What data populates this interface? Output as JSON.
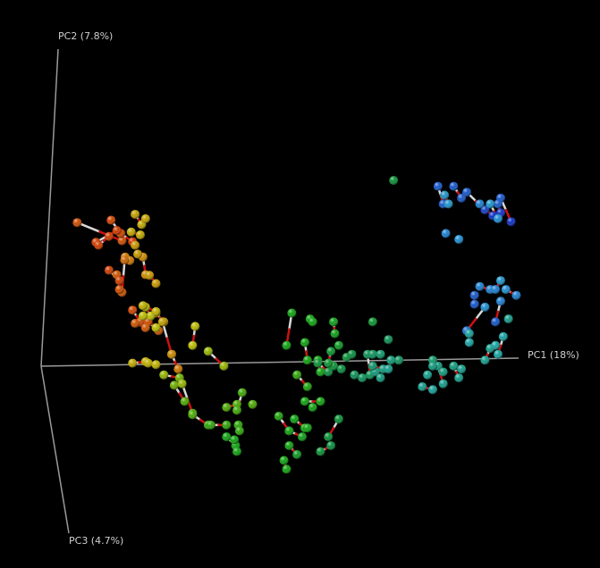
{
  "chart_data": {
    "type": "scatter",
    "projection": "3d-biplot",
    "axes": {
      "x": {
        "label": "PC1 (18%)"
      },
      "y": {
        "label": "PC2 (7.8%)"
      },
      "z": {
        "label": "PC3 (4.7%)"
      }
    },
    "grid": false,
    "legend": "none",
    "background": "#000000",
    "color_scale": [
      "#cc2200",
      "#c88a00",
      "#b8b800",
      "#5aa800",
      "#10a010",
      "#0a8a40",
      "#18a0a0",
      "#2090d0",
      "#1030c0"
    ],
    "note_encoding": "x in [-1,1] along PC1, y in [-1,1] along PC2, z in [0,1] along PC3; c = color gradient 0 (red) to 1 (blue)",
    "pairs": [
      {
        "a": [
          -0.862,
          0.457,
          0.25,
          0.05
        ],
        "b": [
          -0.69,
          0.395,
          0.25,
          0.05
        ]
      },
      {
        "a": [
          -0.732,
          0.465,
          0.25,
          0.04
        ],
        "b": [
          -0.695,
          0.42,
          0.25,
          0.04
        ]
      },
      {
        "a": [
          -0.695,
          0.42,
          0.25,
          0.04
        ],
        "b": [
          -0.65,
          0.392,
          0.25,
          0.02
        ]
      },
      {
        "a": [
          -0.79,
          0.39,
          0.25,
          0.03
        ],
        "b": [
          -0.71,
          0.43,
          0.25,
          0.03
        ]
      },
      {
        "a": [
          -0.78,
          0.38,
          0.25,
          0.03
        ],
        "b": [
          -0.74,
          0.41,
          0.25,
          0.03
        ]
      },
      {
        "a": [
          -0.64,
          0.485,
          0.25,
          0.18
        ],
        "b": [
          -0.615,
          0.45,
          0.25,
          0.2
        ]
      },
      {
        "a": [
          -0.655,
          0.425,
          0.25,
          0.2
        ],
        "b": [
          -0.62,
          0.415,
          0.25,
          0.2
        ]
      },
      {
        "a": [
          -0.678,
          0.34,
          0.25,
          0.1
        ],
        "b": [
          -0.66,
          0.328,
          0.25,
          0.1
        ]
      },
      {
        "a": [
          -0.61,
          0.34,
          0.25,
          0.12
        ],
        "b": [
          -0.6,
          0.28,
          0.25,
          0.12
        ]
      },
      {
        "a": [
          -0.585,
          0.278,
          0.25,
          0.15
        ],
        "b": [
          -0.56,
          0.25,
          0.25,
          0.15
        ]
      },
      {
        "a": [
          -0.68,
          0.33,
          0.25,
          0.08
        ],
        "b": [
          -0.69,
          0.22,
          0.25,
          0.06
        ]
      },
      {
        "a": [
          -0.71,
          0.28,
          0.25,
          0.06
        ],
        "b": [
          -0.7,
          0.23,
          0.25,
          0.05
        ]
      },
      {
        "a": [
          -0.74,
          0.295,
          0.25,
          0.03
        ],
        "b": [
          -0.7,
          0.26,
          0.25,
          0.03
        ]
      },
      {
        "a": [
          -0.65,
          0.16,
          0.25,
          0.04
        ],
        "b": [
          -0.62,
          0.12,
          0.25,
          0.04
        ]
      },
      {
        "a": [
          -0.59,
          0.12,
          0.25,
          0.05
        ],
        "b": [
          -0.55,
          0.09,
          0.25,
          0.06
        ]
      },
      {
        "a": [
          -0.64,
          0.115,
          0.25,
          0.06
        ],
        "b": [
          -0.6,
          0.1,
          0.25,
          0.06
        ]
      },
      {
        "a": [
          -0.56,
          0.15,
          0.25,
          0.15
        ],
        "b": [
          -0.53,
          0.12,
          0.25,
          0.15
        ]
      },
      {
        "a": [
          -0.535,
          0.12,
          0.25,
          0.18
        ],
        "b": [
          -0.5,
          0.01,
          0.25,
          0.2
        ]
      },
      {
        "a": [
          -0.5,
          0.01,
          0.25,
          0.12
        ],
        "b": [
          -0.475,
          -0.04,
          0.25,
          0.1
        ]
      },
      {
        "a": [
          -0.41,
          0.105,
          0.25,
          0.25
        ],
        "b": [
          -0.42,
          0.04,
          0.25,
          0.25
        ]
      },
      {
        "a": [
          -0.36,
          0.02,
          0.25,
          0.3
        ],
        "b": [
          -0.3,
          -0.03,
          0.25,
          0.3
        ]
      },
      {
        "a": [
          -0.6,
          0.17,
          0.25,
          0.25
        ],
        "b": [
          -0.58,
          0.14,
          0.25,
          0.25
        ]
      },
      {
        "a": [
          -0.61,
          0.14,
          0.25,
          0.25
        ],
        "b": [
          -0.56,
          0.1,
          0.25,
          0.25
        ]
      },
      {
        "a": [
          -0.61,
          0.175,
          0.25,
          0.22
        ],
        "b": [
          -0.56,
          0.155,
          0.25,
          0.22
        ]
      },
      {
        "a": [
          -0.65,
          -0.02,
          0.25,
          0.2
        ],
        "b": [
          -0.6,
          -0.015,
          0.25,
          0.2
        ]
      },
      {
        "a": [
          -0.59,
          -0.02,
          0.25,
          0.22
        ],
        "b": [
          -0.56,
          -0.025,
          0.25,
          0.22
        ]
      },
      {
        "a": [
          -0.53,
          -0.06,
          0.25,
          0.3
        ],
        "b": [
          -0.47,
          -0.07,
          0.25,
          0.35
        ]
      },
      {
        "a": [
          -0.49,
          -0.095,
          0.25,
          0.35
        ],
        "b": [
          -0.45,
          -0.15,
          0.25,
          0.4
        ]
      },
      {
        "a": [
          -0.46,
          -0.09,
          0.25,
          0.3
        ],
        "b": [
          -0.42,
          -0.19,
          0.25,
          0.4
        ]
      },
      {
        "a": [
          -0.42,
          -0.195,
          0.25,
          0.4
        ],
        "b": [
          -0.36,
          -0.23,
          0.25,
          0.45
        ]
      },
      {
        "a": [
          -0.35,
          -0.23,
          0.25,
          0.45
        ],
        "b": [
          -0.29,
          -0.23,
          0.25,
          0.45
        ]
      },
      {
        "a": [
          -0.29,
          -0.17,
          0.25,
          0.4
        ],
        "b": [
          -0.25,
          -0.16,
          0.25,
          0.4
        ]
      },
      {
        "a": [
          -0.23,
          -0.12,
          0.25,
          0.42
        ],
        "b": [
          -0.25,
          -0.18,
          0.25,
          0.42
        ]
      },
      {
        "a": [
          -0.29,
          -0.27,
          0.25,
          0.5
        ],
        "b": [
          -0.255,
          -0.3,
          0.25,
          0.5
        ]
      },
      {
        "a": [
          -0.26,
          -0.28,
          0.25,
          0.5
        ],
        "b": [
          -0.25,
          -0.32,
          0.25,
          0.5
        ]
      },
      {
        "a": [
          -0.245,
          -0.23,
          0.25,
          0.45
        ],
        "b": [
          -0.24,
          -0.25,
          0.25,
          0.45
        ]
      },
      {
        "a": [
          -0.04,
          0.15,
          0.25,
          0.5
        ],
        "b": [
          -0.06,
          0.04,
          0.25,
          0.5
        ]
      },
      {
        "a": [
          0.03,
          0.13,
          0.25,
          0.5
        ],
        "b": [
          0.04,
          0.12,
          0.25,
          0.5
        ]
      },
      {
        "a": [
          0.12,
          0.12,
          0.25,
          0.52
        ],
        "b": [
          0.125,
          0.08,
          0.25,
          0.52
        ]
      },
      {
        "a": [
          0.01,
          0.05,
          0.25,
          0.5
        ],
        "b": [
          0.02,
          -0.01,
          0.25,
          0.5
        ]
      },
      {
        "a": [
          0.06,
          -0.01,
          0.25,
          0.5
        ],
        "b": [
          0.07,
          -0.05,
          0.25,
          0.5
        ]
      },
      {
        "a": [
          -0.02,
          -0.06,
          0.25,
          0.45
        ],
        "b": [
          0.02,
          -0.1,
          0.25,
          0.48
        ]
      },
      {
        "a": [
          0.01,
          -0.15,
          0.25,
          0.5
        ],
        "b": [
          0.07,
          -0.15,
          0.25,
          0.5
        ]
      },
      {
        "a": [
          -0.09,
          -0.2,
          0.25,
          0.48
        ],
        "b": [
          -0.05,
          -0.25,
          0.25,
          0.5
        ]
      },
      {
        "a": [
          -0.05,
          -0.25,
          0.25,
          0.5
        ],
        "b": [
          0.0,
          -0.27,
          0.25,
          0.52
        ]
      },
      {
        "a": [
          -0.03,
          -0.21,
          0.25,
          0.5
        ],
        "b": [
          0.01,
          -0.24,
          0.25,
          0.5
        ]
      },
      {
        "a": [
          -0.05,
          -0.3,
          0.25,
          0.5
        ],
        "b": [
          -0.02,
          -0.33,
          0.25,
          0.55
        ]
      },
      {
        "a": [
          -0.07,
          -0.35,
          0.25,
          0.5
        ],
        "b": [
          -0.06,
          -0.38,
          0.25,
          0.5
        ]
      },
      {
        "a": [
          0.07,
          -0.32,
          0.25,
          0.6
        ],
        "b": [
          0.11,
          -0.3,
          0.25,
          0.62
        ]
      },
      {
        "a": [
          0.14,
          -0.21,
          0.25,
          0.6
        ],
        "b": [
          0.1,
          -0.27,
          0.25,
          0.6
        ]
      },
      {
        "a": [
          0.06,
          -0.02,
          0.25,
          0.6
        ],
        "b": [
          0.1,
          -0.05,
          0.25,
          0.62
        ]
      },
      {
        "a": [
          0.12,
          -0.03,
          0.25,
          0.6
        ],
        "b": [
          0.15,
          -0.04,
          0.25,
          0.62
        ]
      },
      {
        "a": [
          0.17,
          0.0,
          0.25,
          0.6
        ],
        "b": [
          0.19,
          0.01,
          0.25,
          0.62
        ]
      },
      {
        "a": [
          0.11,
          0.02,
          0.25,
          0.58
        ],
        "b": [
          0.1,
          -0.02,
          0.25,
          0.58
        ]
      },
      {
        "a": [
          0.25,
          0.01,
          0.25,
          0.65
        ],
        "b": [
          0.26,
          -0.06,
          0.25,
          0.65
        ]
      },
      {
        "a": [
          0.27,
          0.01,
          0.25,
          0.66
        ],
        "b": [
          0.3,
          0.01,
          0.25,
          0.68
        ]
      },
      {
        "a": [
          0.2,
          -0.06,
          0.25,
          0.65
        ],
        "b": [
          0.23,
          -0.07,
          0.25,
          0.66
        ]
      },
      {
        "a": [
          0.28,
          -0.05,
          0.25,
          0.7
        ],
        "b": [
          0.3,
          -0.07,
          0.25,
          0.7
        ]
      },
      {
        "a": [
          0.27,
          -0.03,
          0.25,
          0.68
        ],
        "b": [
          0.31,
          -0.04,
          0.25,
          0.7
        ]
      },
      {
        "a": [
          0.34,
          -0.01,
          0.25,
          0.7
        ],
        "b": [
          0.33,
          -0.04,
          0.25,
          0.72
        ]
      },
      {
        "a": [
          0.52,
          0.58,
          0.25,
          0.95
        ],
        "b": [
          0.54,
          0.52,
          0.25,
          0.95
        ]
      },
      {
        "a": [
          0.545,
          0.55,
          0.25,
          0.85
        ],
        "b": [
          0.56,
          0.52,
          0.25,
          0.85
        ]
      },
      {
        "a": [
          0.58,
          0.58,
          0.25,
          0.95
        ],
        "b": [
          0.61,
          0.54,
          0.25,
          0.95
        ]
      },
      {
        "a": [
          0.63,
          0.56,
          0.25,
          0.95
        ],
        "b": [
          0.7,
          0.5,
          0.25,
          0.98
        ]
      },
      {
        "a": [
          0.68,
          0.52,
          0.25,
          0.9
        ],
        "b": [
          0.73,
          0.48,
          0.25,
          1.0
        ]
      },
      {
        "a": [
          0.76,
          0.54,
          0.25,
          0.95
        ],
        "b": [
          0.8,
          0.46,
          0.25,
          1.0
        ]
      },
      {
        "a": [
          0.75,
          0.52,
          0.25,
          0.95
        ],
        "b": [
          0.76,
          0.49,
          0.25,
          1.0
        ]
      },
      {
        "a": [
          0.72,
          0.52,
          0.25,
          0.85
        ],
        "b": [
          0.75,
          0.47,
          0.25,
          0.88
        ]
      },
      {
        "a": [
          0.68,
          0.24,
          0.25,
          0.9
        ],
        "b": [
          0.72,
          0.23,
          0.25,
          0.9
        ]
      },
      {
        "a": [
          0.76,
          0.26,
          0.25,
          0.85
        ],
        "b": [
          0.74,
          0.23,
          0.25,
          0.9
        ]
      },
      {
        "a": [
          0.78,
          0.23,
          0.25,
          0.88
        ],
        "b": [
          0.82,
          0.21,
          0.25,
          0.9
        ]
      },
      {
        "a": [
          0.66,
          0.21,
          0.25,
          0.95
        ],
        "b": [
          0.66,
          0.18,
          0.25,
          0.95
        ]
      },
      {
        "a": [
          0.7,
          0.17,
          0.25,
          0.88
        ],
        "b": [
          0.63,
          0.09,
          0.25,
          0.92
        ]
      },
      {
        "a": [
          0.76,
          0.19,
          0.25,
          0.9
        ],
        "b": [
          0.74,
          0.12,
          0.25,
          0.95
        ]
      },
      {
        "a": [
          0.77,
          0.07,
          0.25,
          0.75
        ],
        "b": [
          0.75,
          0.01,
          0.25,
          0.75
        ]
      },
      {
        "a": [
          0.72,
          0.03,
          0.25,
          0.72
        ],
        "b": [
          0.7,
          -0.01,
          0.25,
          0.72
        ]
      },
      {
        "a": [
          0.58,
          -0.03,
          0.25,
          0.7
        ],
        "b": [
          0.6,
          -0.07,
          0.25,
          0.72
        ]
      },
      {
        "a": [
          0.52,
          -0.03,
          0.25,
          0.7
        ],
        "b": [
          0.54,
          -0.09,
          0.25,
          0.72
        ]
      },
      {
        "a": [
          0.5,
          -0.01,
          0.25,
          0.68
        ],
        "b": [
          0.54,
          -0.05,
          0.25,
          0.7
        ]
      },
      {
        "a": [
          0.46,
          -0.1,
          0.25,
          0.72
        ],
        "b": [
          0.5,
          -0.11,
          0.25,
          0.74
        ]
      }
    ],
    "points": [
      [
        0.35,
        0.6,
        0.25,
        0.6
      ],
      [
        0.6,
        0.4,
        0.25,
        0.88
      ],
      [
        0.55,
        0.42,
        0.25,
        0.9
      ],
      [
        0.48,
        -0.06,
        0.25,
        0.72
      ],
      [
        0.61,
        -0.04,
        0.25,
        0.72
      ],
      [
        0.5,
        -0.03,
        0.25,
        0.7
      ],
      [
        0.74,
        0.04,
        0.25,
        0.75
      ],
      [
        0.79,
        0.13,
        0.25,
        0.72
      ],
      [
        0.64,
        0.08,
        0.25,
        0.74
      ],
      [
        0.64,
        0.05,
        0.25,
        0.75
      ],
      [
        -0.64,
        0.38,
        0.25,
        0.15
      ],
      [
        -0.63,
        0.35,
        0.25,
        0.15
      ],
      [
        -0.6,
        0.47,
        0.25,
        0.18
      ],
      [
        -0.19,
        -0.16,
        0.25,
        0.4
      ],
      [
        0.04,
        -0.17,
        0.25,
        0.5
      ],
      [
        0.02,
        -0.24,
        0.25,
        0.5
      ],
      [
        0.27,
        0.12,
        0.25,
        0.58
      ],
      [
        0.33,
        0.06,
        0.25,
        0.65
      ],
      [
        0.14,
        0.04,
        0.25,
        0.55
      ],
      [
        0.37,
        -0.01,
        0.25,
        0.66
      ]
    ]
  },
  "axis_labels": {
    "pc1": "PC1 (18%)",
    "pc2": "PC2 (7.8%)",
    "pc3": "PC3 (4.7%)"
  }
}
